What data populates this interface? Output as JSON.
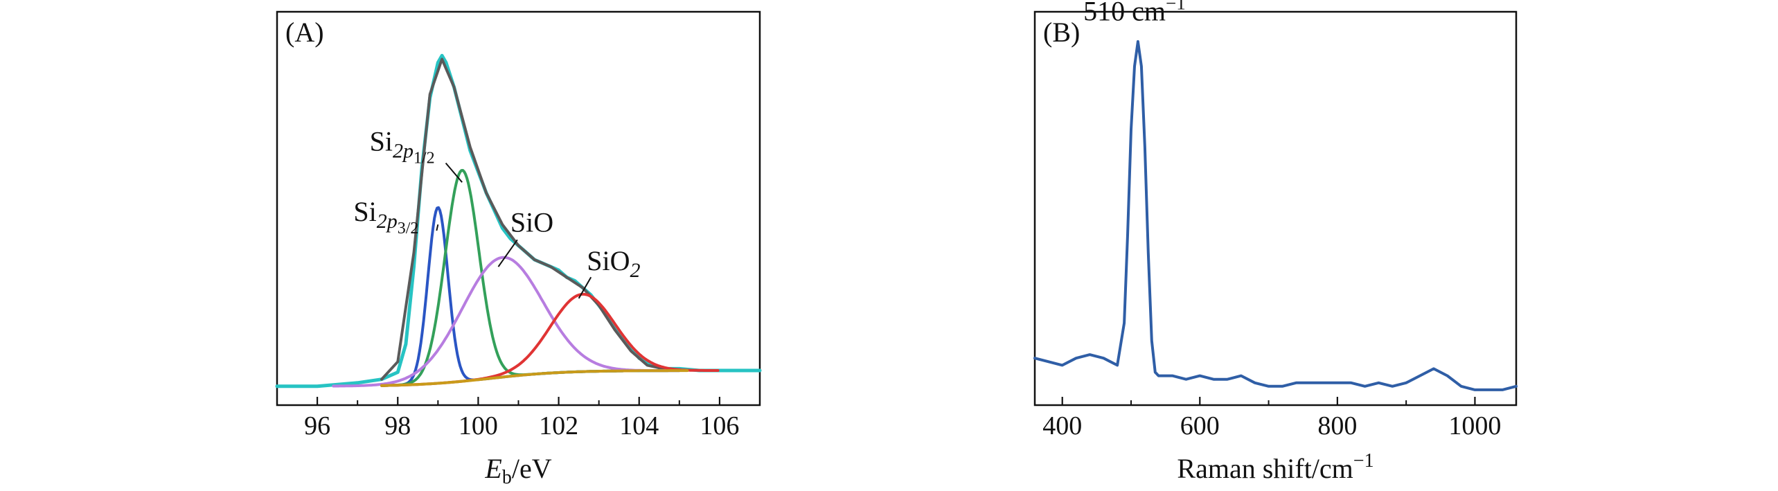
{
  "chart_data": [
    {
      "panel": "A",
      "panel_label": "(A)",
      "type": "line",
      "xlabel": {
        "main": "E",
        "sub": "b",
        "unit": "/eV"
      },
      "ylabel": "",
      "xlim": [
        95,
        107
      ],
      "ylim": [
        0,
        100
      ],
      "xticks": [
        96,
        98,
        100,
        102,
        104,
        106
      ],
      "yticks_shown": false,
      "grid": false,
      "legend": "none",
      "series": [
        {
          "key": "measured",
          "color": "#27c3c3",
          "x": [
            95.0,
            96.0,
            97.0,
            97.6,
            98.0,
            98.2,
            98.4,
            98.6,
            98.8,
            99.0,
            99.1,
            99.2,
            99.4,
            99.6,
            99.8,
            100.0,
            100.2,
            100.4,
            100.6,
            100.8,
            101.0,
            101.2,
            101.4,
            101.6,
            101.8,
            102.0,
            102.2,
            102.4,
            102.6,
            102.8,
            103.0,
            103.2,
            103.4,
            103.6,
            103.8,
            104.0,
            104.3,
            104.6,
            105.0,
            105.5,
            106.0,
            106.5,
            107.0
          ],
          "y": [
            2,
            2,
            3,
            4,
            6,
            14,
            36,
            64,
            84,
            94,
            96,
            94,
            87,
            78,
            69,
            63,
            57,
            52,
            47,
            44,
            42,
            40,
            38,
            37,
            36,
            35,
            33,
            32,
            30,
            28,
            25,
            22,
            19,
            16,
            13,
            10,
            8,
            7,
            7,
            6.5,
            6.5,
            6.5,
            6.5
          ]
        },
        {
          "key": "fit-envelope",
          "color": "#5a5a5a",
          "x": [
            97.6,
            98.0,
            98.4,
            98.8,
            99.1,
            99.4,
            99.8,
            100.2,
            100.6,
            101.0,
            101.4,
            101.8,
            102.2,
            102.6,
            103.0,
            103.4,
            103.8,
            104.2,
            104.6,
            105.0
          ],
          "y": [
            4,
            9,
            40,
            85,
            95,
            87,
            70,
            57,
            48,
            42,
            38,
            36,
            33,
            30,
            25,
            18,
            12,
            8,
            7,
            6.5
          ]
        },
        {
          "key": "si2p3-2",
          "name": "Si2p3/2",
          "color": "#2a55c4",
          "peak": {
            "center": 99.0,
            "height": 50,
            "sigma": 0.25
          }
        },
        {
          "key": "si2p1-2",
          "name": "Si2p1/2",
          "color": "#33a05a",
          "peak": {
            "center": 99.6,
            "height": 60,
            "sigma": 0.42
          }
        },
        {
          "key": "sio",
          "name": "SiO",
          "color": "#b77de0",
          "peak": {
            "center": 100.6,
            "height": 34,
            "sigma": 1.0
          }
        },
        {
          "key": "sio2",
          "name": "SiO2",
          "color": "#e03434",
          "peak": {
            "center": 102.6,
            "height": 22,
            "sigma": 0.8
          }
        },
        {
          "key": "background",
          "color": "#c99a1a",
          "background": true
        }
      ],
      "annotations": [
        {
          "key": "si2p1-2",
          "base": "Si",
          "sub": "2p",
          "subsub": "1/2",
          "x": 99.6,
          "y": 60,
          "text_x": 97.3,
          "text_y": 69
        },
        {
          "key": "si2p3-2",
          "base": "Si",
          "sub": "2p",
          "subsub": "3/2",
          "x": 99.0,
          "y": 48,
          "text_x": 96.9,
          "text_y": 49
        },
        {
          "key": "sio",
          "base": "SiO",
          "sub": "",
          "subsub": "",
          "x": 100.5,
          "y": 36,
          "text_x": 100.8,
          "text_y": 46
        },
        {
          "key": "sio2",
          "base": "SiO",
          "sub": "2",
          "subsub": "",
          "x": 102.5,
          "y": 27,
          "text_x": 102.7,
          "text_y": 35
        }
      ]
    },
    {
      "panel": "B",
      "panel_label": "(B)",
      "type": "line",
      "xlabel": {
        "main": "Raman shift/cm",
        "sup": "−1"
      },
      "ylabel": "",
      "xlim": [
        360,
        1060
      ],
      "ylim": [
        0,
        100
      ],
      "xticks": [
        400,
        600,
        800,
        1000
      ],
      "yticks_shown": false,
      "grid": false,
      "legend": "none",
      "series": [
        {
          "key": "raman-spectrum",
          "color": "#2f5ea6",
          "x": [
            360,
            380,
            400,
            420,
            440,
            460,
            470,
            480,
            490,
            495,
            500,
            505,
            510,
            515,
            520,
            525,
            530,
            535,
            540,
            560,
            580,
            600,
            620,
            640,
            660,
            680,
            700,
            720,
            740,
            760,
            780,
            800,
            820,
            840,
            860,
            880,
            900,
            920,
            940,
            960,
            980,
            1000,
            1020,
            1040,
            1060
          ],
          "y": [
            10,
            9,
            8,
            10,
            11,
            10,
            9,
            8,
            20,
            45,
            75,
            93,
            100,
            93,
            70,
            40,
            15,
            6,
            5,
            5,
            4,
            5,
            4,
            4,
            5,
            3,
            2,
            2,
            3,
            3,
            3,
            3,
            3,
            2,
            3,
            2,
            3,
            5,
            7,
            5,
            2,
            1,
            1,
            1,
            2
          ]
        }
      ],
      "annotations": [
        {
          "key": "peak-label",
          "text": "510 cm",
          "sup": "−1",
          "x": 505,
          "y": 106
        }
      ]
    }
  ]
}
